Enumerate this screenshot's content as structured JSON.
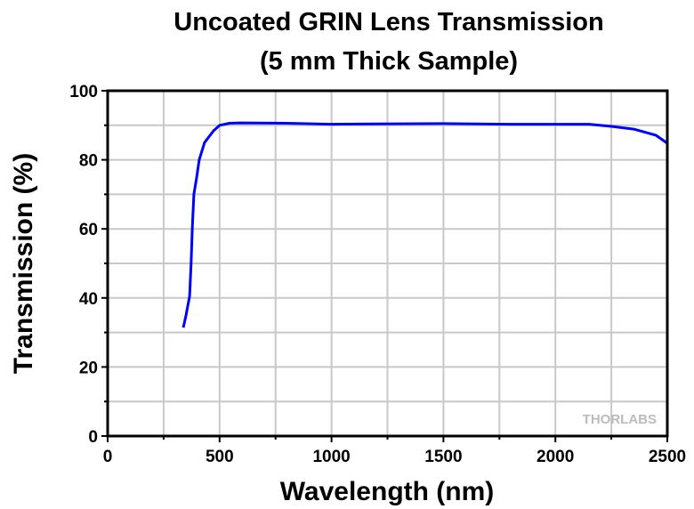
{
  "chart_data": {
    "type": "line",
    "title": "Uncoated GRIN Lens Transmission",
    "subtitle": "(5 mm Thick Sample)",
    "xlabel": "Wavelength (nm)",
    "ylabel": "Transmission (%)",
    "xlim": [
      0,
      2500
    ],
    "ylim": [
      0,
      100
    ],
    "xticks": [
      "0",
      "500",
      "1000",
      "1500",
      "2000",
      "2500"
    ],
    "yticks": [
      "0",
      "20",
      "40",
      "60",
      "80",
      "100"
    ],
    "grid": true,
    "watermark": "THORLABS",
    "series": [
      {
        "name": "Transmission",
        "color": "#0000ff",
        "x": [
          338,
          350,
          366,
          373,
          378,
          385,
          397,
          409,
          433,
          473,
          500,
          545,
          592,
          800,
          1000,
          1200,
          1500,
          1800,
          2000,
          2150,
          2250,
          2350,
          2450,
          2500
        ],
        "y": [
          31.4,
          35,
          40.5,
          50,
          60,
          70,
          74.7,
          80,
          85,
          88.4,
          90,
          90.6,
          90.7,
          90.6,
          90.3,
          90.4,
          90.5,
          90.3,
          90.3,
          90.3,
          89.7,
          88.9,
          87.1,
          84.8
        ]
      }
    ]
  }
}
